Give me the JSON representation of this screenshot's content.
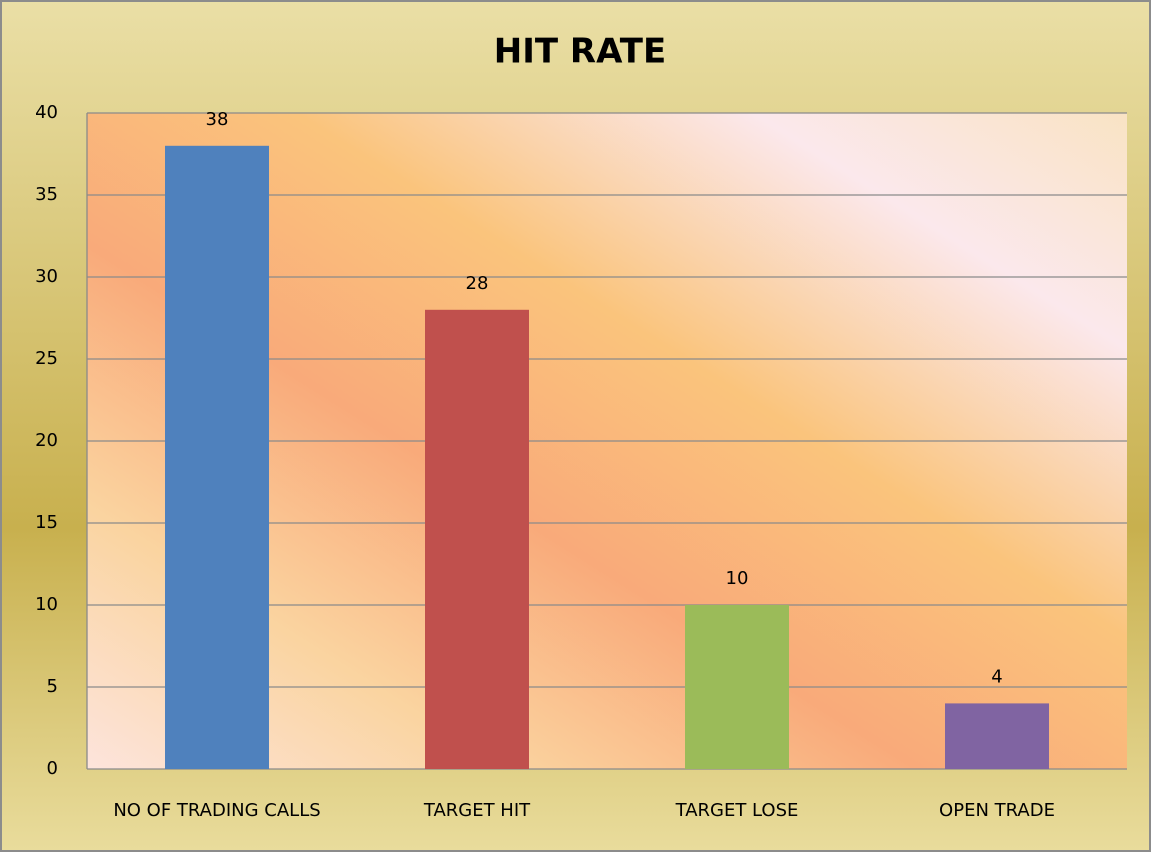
{
  "chart_data": {
    "type": "bar",
    "title": "HIT RATE",
    "categories": [
      "NO OF TRADING CALLS",
      "TARGET HIT",
      "TARGET LOSE",
      "OPEN TRADE"
    ],
    "values": [
      38,
      28,
      10,
      4
    ],
    "colors": [
      "#4f81bd",
      "#c0504d",
      "#9bbb59",
      "#8064a2"
    ],
    "ylim": [
      0,
      40
    ],
    "yticks": [
      0,
      5,
      10,
      15,
      20,
      25,
      30,
      35,
      40
    ],
    "grid": true
  }
}
